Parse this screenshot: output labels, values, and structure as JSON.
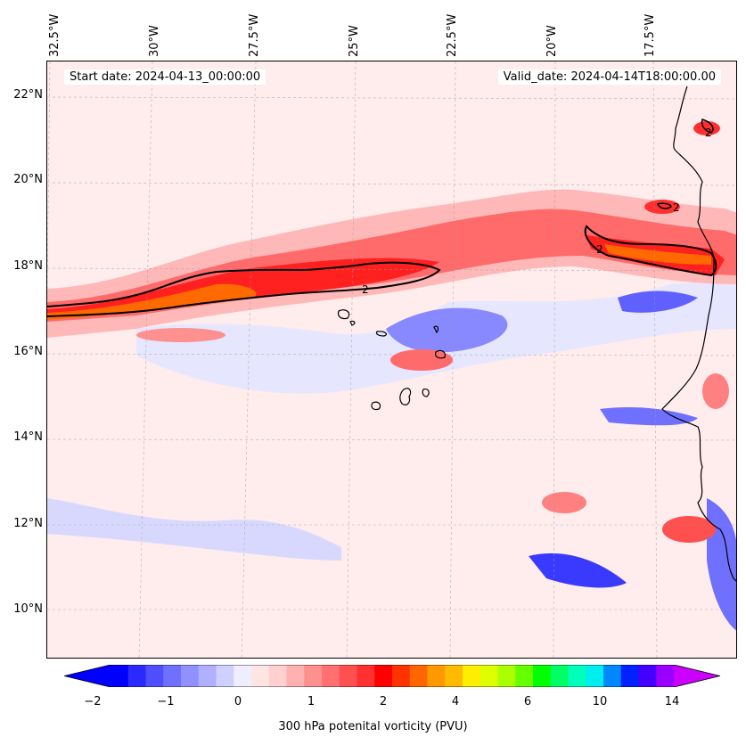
{
  "map": {
    "start_date": "Start date: 2024-04-13_00:00:00",
    "valid_date": "Valid_date: 2024-04-14T18:00:00.00",
    "contour_label": "2",
    "longitude_labels": [
      "32.5°W",
      "30°W",
      "27.5°W",
      "25°W",
      "22.5°W",
      "20°W",
      "17.5°W"
    ],
    "latitude_labels": [
      "22°N",
      "20°N",
      "18°N",
      "16°N",
      "14°N",
      "12°N",
      "10°N"
    ],
    "extent": {
      "lon_min": -32.5,
      "lon_max": -15.5,
      "lat_min": 9,
      "lat_max": 22.8
    },
    "field": "300 hPa potential vorticity",
    "contour_level_pvu": 2
  },
  "colorbar": {
    "label": "300 hPa potenital vorticity (PVU)",
    "tick_labels": [
      "−2",
      "−1",
      "0",
      "1",
      "2",
      "4",
      "6",
      "10",
      "14"
    ],
    "colors": [
      "#0000ff",
      "#2a2aff",
      "#4f4fff",
      "#7070ff",
      "#9090ff",
      "#b0b0ff",
      "#d0d0ff",
      "#eeeeff",
      "#ffe4e4",
      "#ffd0d0",
      "#ffb0b0",
      "#ff9090",
      "#ff7070",
      "#ff5050",
      "#ff3030",
      "#ff0000",
      "#ff3300",
      "#ff6600",
      "#ff9900",
      "#ffbb00",
      "#ffee00",
      "#ddff00",
      "#aaff00",
      "#66ff00",
      "#00ff00",
      "#00ff66",
      "#00ffbb",
      "#00eeee",
      "#0088ff",
      "#0022ff",
      "#4400ff",
      "#9900ff"
    ],
    "extend_low_color": "#0000ff",
    "extend_high_color": "#cc00ff"
  }
}
